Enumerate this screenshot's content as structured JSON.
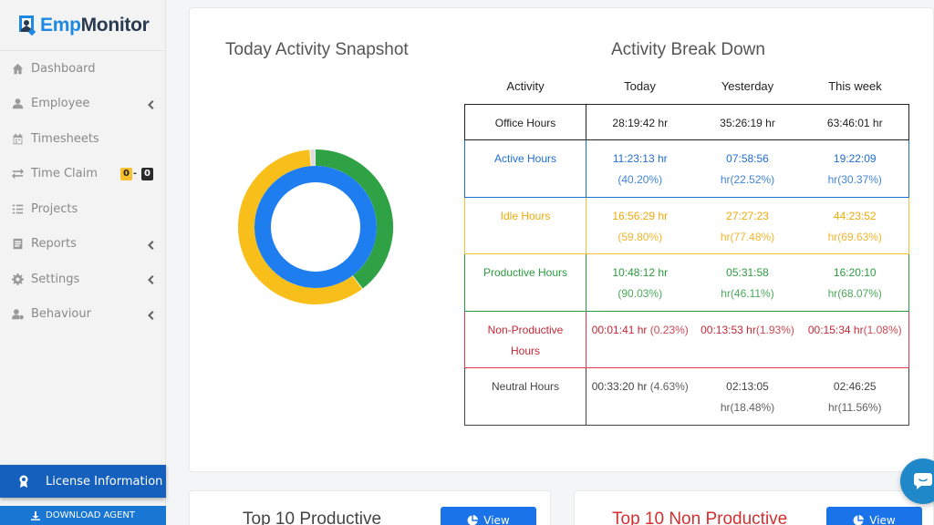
{
  "app": {
    "logo_text_1": "Emp",
    "logo_text_2": "Monitor"
  },
  "sidebar": {
    "items": [
      {
        "label": "Dashboard",
        "icon": "home-icon"
      },
      {
        "label": "Employee",
        "icon": "user-icon"
      },
      {
        "label": "Timesheets",
        "icon": "calendar-icon"
      },
      {
        "label": "Time Claim",
        "icon": "exchange-icon",
        "badge1": "0",
        "badge_sep": "-",
        "badge2": "0"
      },
      {
        "label": "Projects",
        "icon": "list-icon"
      },
      {
        "label": "Reports",
        "icon": "report-icon"
      },
      {
        "label": "Settings",
        "icon": "gear-icon"
      },
      {
        "label": "Behaviour",
        "icon": "user-cog-icon"
      }
    ],
    "license_label": "License Information",
    "download_label": "DOWNLOAD AGENT"
  },
  "snapshot": {
    "title": "Today Activity Snapshot",
    "donut": {
      "outer": [
        {
          "label": "Productive",
          "value": 40.2,
          "color": "#2ea244"
        },
        {
          "label": "Idle",
          "value": 59.8,
          "color": "#f8bf1a"
        }
      ],
      "outer_gap_color": "#dddddd",
      "inner_color": "#1e7ef0"
    }
  },
  "breakdown": {
    "title": "Activity Break Down",
    "headers": [
      "Activity",
      "Today",
      "Yesterday",
      "This week"
    ],
    "rows": [
      {
        "activity": "Office Hours",
        "today": "28:19:42 hr",
        "yesterday": "35:26:19 hr",
        "week": "63:46:01 hr"
      },
      {
        "activity": "Active Hours",
        "today": "11:23:13 hr",
        "today_pct": "(40.20%)",
        "yesterday": "07:58:56",
        "yesterday_pct": "hr(22.52%)",
        "week": "19:22:09",
        "week_pct": "hr(30.37%)"
      },
      {
        "activity": "Idle Hours",
        "today": "16:56:29 hr",
        "today_pct": "(59.80%)",
        "yesterday": "27:27:23",
        "yesterday_pct": "hr(77.48%)",
        "week": "44:23:52",
        "week_pct": "hr(69.63%)"
      },
      {
        "activity": "Productive Hours",
        "today": "10:48:12 hr",
        "today_pct": "(90.03%)",
        "yesterday": "05:31:58",
        "yesterday_pct": "hr(46.11%)",
        "week": "16:20:10",
        "week_pct": "hr(68.07%)"
      },
      {
        "activity": "Non-Productive Hours",
        "today": "00:01:41 hr",
        "today_pct": "(0.23%)",
        "yesterday": "00:13:53 hr",
        "yesterday_pct": "(1.93%)",
        "week": "00:15:34 hr",
        "week_pct": "(1.08%)"
      },
      {
        "activity": "Neutral Hours",
        "today": "00:33:20 hr",
        "today_pct": "(4.63%)",
        "yesterday": "02:13:05",
        "yesterday_pct": "hr(18.48%)",
        "week": "02:46:25",
        "week_pct": "hr(11.56%)"
      }
    ]
  },
  "bottom": {
    "left_title": "Top 10 Productive",
    "right_title": "Top 10 Non Productive",
    "view_label": "View"
  }
}
